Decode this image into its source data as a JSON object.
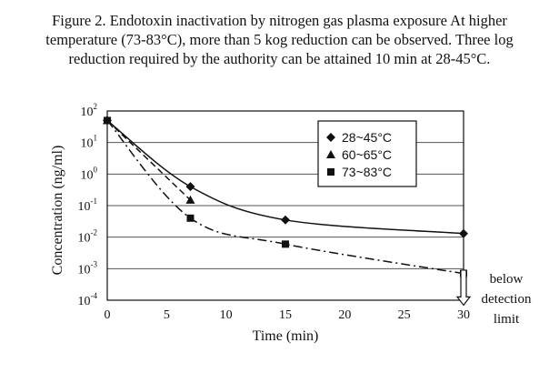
{
  "caption": {
    "line1": "Figure 2. Endotoxin inactivation by nitrogen gas plasma exposure At higher",
    "line2": "temperature (73-83°C), more than 5 kog reduction can be observed. Three log",
    "line3": "reduction required by the authority can be attained 10 min at 28-45°C."
  },
  "chart_data": {
    "type": "line",
    "xlabel": "Time (min)",
    "ylabel": "Concentration (ng/ml)",
    "xlim": [
      0,
      30
    ],
    "x_ticks": [
      "0",
      "5",
      "10",
      "15",
      "20",
      "25",
      "30"
    ],
    "y_scale": "log",
    "ylim_exponent": [
      -4,
      2
    ],
    "y_ticks": [
      {
        "base": "10",
        "exp": "2"
      },
      {
        "base": "10",
        "exp": "1"
      },
      {
        "base": "10",
        "exp": "0"
      },
      {
        "base": "10",
        "exp": "-1"
      },
      {
        "base": "10",
        "exp": "-2"
      },
      {
        "base": "10",
        "exp": "-3"
      },
      {
        "base": "10",
        "exp": "-4"
      }
    ],
    "grid": "horizontal",
    "legend_position": "top-right",
    "series": [
      {
        "name": "28~45°C",
        "marker": "diamond",
        "line": "solid",
        "x": [
          0,
          7,
          15,
          30
        ],
        "y": [
          50,
          0.4,
          0.035,
          0.013
        ]
      },
      {
        "name": "60~65°C",
        "marker": "triangle",
        "line": "dashed",
        "x": [
          0,
          7
        ],
        "y": [
          50,
          0.15
        ]
      },
      {
        "name": "73~83°C",
        "marker": "square",
        "line": "dashdot",
        "x": [
          0,
          7,
          15,
          30
        ],
        "y": [
          50,
          0.04,
          0.006,
          0.0007
        ]
      }
    ],
    "annotation": {
      "line1": "below",
      "line2": "detection",
      "line3": "limit",
      "x": 30,
      "y_from": 0.0009,
      "y_to": 7e-05
    }
  }
}
